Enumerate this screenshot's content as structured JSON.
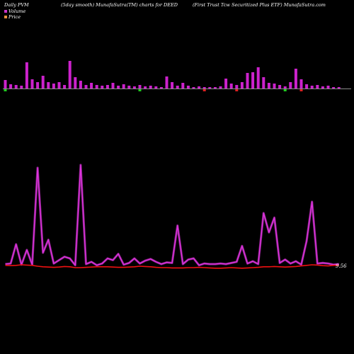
{
  "header": {
    "left": "Daily PVM",
    "middle": "(5day smooth) MunafaSutra(TM) charts for DEED",
    "right": "(First Trust Tcw Securitized Plus ETF) MunafaSutra.com"
  },
  "legend": {
    "volume_label": "Volume",
    "price_label": "Price",
    "volume_color": "#cc33cc",
    "price_color": "#e89040"
  },
  "colors": {
    "background": "#000000",
    "volume_bar": "#cc22cc",
    "volume_up_tick": "#22cc22",
    "volume_down_tick": "#dd2222",
    "pvm_line": "#dd33dd",
    "price_line": "#ee1111",
    "baseline": "#888888"
  },
  "last_price_label": "9.56",
  "chart_data": [
    {
      "type": "bar",
      "title": "Volume",
      "volumes": [
        12,
        6,
        5,
        4,
        37,
        13,
        9,
        18,
        9,
        7,
        9,
        5,
        39,
        16,
        11,
        5,
        8,
        5,
        4,
        5,
        8,
        4,
        6,
        4,
        3,
        5,
        3,
        4,
        3,
        2,
        17,
        9,
        4,
        8,
        4,
        2,
        3,
        2,
        2,
        2,
        3,
        14,
        7,
        5,
        9,
        22,
        23,
        30,
        16,
        8,
        7,
        5,
        3,
        9,
        28,
        13,
        6,
        4,
        5,
        3,
        4,
        2,
        2
      ],
      "direction": [
        "up",
        "none",
        "none",
        "none",
        "none",
        "none",
        "none",
        "none",
        "none",
        "none",
        "none",
        "none",
        "none",
        "none",
        "none",
        "none",
        "none",
        "none",
        "none",
        "none",
        "none",
        "none",
        "none",
        "none",
        "none",
        "up",
        "none",
        "none",
        "none",
        "none",
        "none",
        "none",
        "none",
        "none",
        "none",
        "none",
        "none",
        "down",
        "none",
        "none",
        "none",
        "none",
        "none",
        "down",
        "none",
        "none",
        "none",
        "none",
        "none",
        "none",
        "none",
        "none",
        "up",
        "none",
        "none",
        "down",
        "none",
        "none",
        "none",
        "none",
        "none",
        "none",
        "none"
      ]
    },
    {
      "type": "line",
      "title": "PVM",
      "pvm": [
        0.5,
        0.6,
        4.0,
        0.4,
        3.0,
        0.4,
        17.5,
        2.5,
        4.8,
        0.6,
        1.2,
        1.8,
        1.5,
        0.3,
        18.0,
        0.5,
        0.9,
        0.3,
        0.6,
        1.5,
        1.2,
        2.3,
        0.4,
        0.7,
        1.5,
        0.6,
        1.1,
        1.4,
        0.9,
        0.5,
        0.8,
        0.7,
        7.3,
        0.5,
        1.3,
        1.5,
        0.3,
        0.6,
        0.5,
        0.5,
        0.6,
        0.5,
        0.7,
        0.9,
        3.7,
        0.6,
        1.0,
        0.5,
        9.5,
        6.1,
        8.7,
        0.7,
        1.3,
        0.6,
        1.0,
        0.4,
        4.6,
        11.5,
        0.6,
        0.7,
        0.6,
        0.4,
        0.5
      ],
      "price": [
        0.3,
        0.2,
        0.3,
        0.5,
        0.4,
        0.3,
        0.0,
        -0.2,
        -0.3,
        -0.4,
        -0.3,
        -0.1,
        -0.2,
        -0.5,
        -0.5,
        -0.4,
        -0.3,
        -0.2,
        -0.2,
        -0.2,
        -0.3,
        -0.4,
        -0.4,
        -0.3,
        -0.2,
        0.0,
        -0.1,
        -0.2,
        -0.4,
        -0.5,
        -0.5,
        -0.6,
        -0.6,
        -0.6,
        -0.5,
        -0.5,
        -0.4,
        -0.5,
        -0.6,
        -0.7,
        -0.7,
        -0.6,
        -0.5,
        -0.6,
        -0.7,
        -0.6,
        -0.5,
        -0.4,
        -0.2,
        -0.2,
        -0.1,
        -0.2,
        -0.3,
        -0.2,
        -0.1,
        0.1,
        0.3,
        0.5,
        0.4,
        0.2,
        0.1,
        0.3,
        0.3
      ]
    }
  ]
}
